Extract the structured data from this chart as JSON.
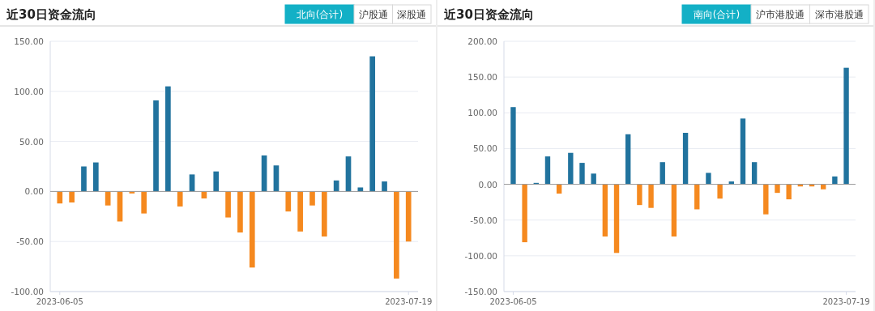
{
  "chart_data": [
    {
      "type": "bar",
      "title": "近30日资金流向",
      "annotations": [
        "北向(合计)",
        "沪股通",
        "深股通"
      ],
      "categories": [
        "2023-06-05",
        null,
        null,
        null,
        null,
        null,
        null,
        null,
        null,
        null,
        null,
        null,
        null,
        null,
        null,
        null,
        null,
        null,
        null,
        null,
        null,
        null,
        null,
        null,
        null,
        null,
        null,
        null,
        null,
        "2023-07-19"
      ],
      "values": [
        -12,
        -11,
        25,
        29,
        -14,
        -30,
        -2,
        -22,
        91,
        105,
        -15,
        17,
        -7,
        20,
        -26,
        -41,
        -76,
        36,
        26,
        -20,
        -40,
        -14,
        -45,
        11,
        35,
        4,
        135,
        10,
        -87,
        -50
      ],
      "colors": [
        "#f5891f",
        "#f5891f",
        "#21739e",
        "#21739e",
        "#f5891f",
        "#f5891f",
        "#f5891f",
        "#f5891f",
        "#21739e",
        "#21739e",
        "#f5891f",
        "#21739e",
        "#f5891f",
        "#21739e",
        "#f5891f",
        "#f5891f",
        "#f5891f",
        "#21739e",
        "#21739e",
        "#f5891f",
        "#f5891f",
        "#f5891f",
        "#f5891f",
        "#21739e",
        "#21739e",
        "#21739e",
        "#21739e",
        "#21739e",
        "#f5891f",
        "#f5891f"
      ],
      "ylim": [
        -100,
        150
      ],
      "yticks": [
        {
          "value": -100,
          "label": "-100.00"
        },
        {
          "value": -50,
          "label": "-50.00"
        },
        {
          "value": 0,
          "label": "0.00"
        },
        {
          "value": 50,
          "label": "50.00"
        },
        {
          "value": 100,
          "label": "100.00"
        },
        {
          "value": 150,
          "label": "150.00"
        }
      ],
      "grid": "y"
    },
    {
      "type": "bar",
      "title": "近30日资金流向",
      "annotations": [
        "南向(合计)",
        "沪市港股通",
        "深市港股通"
      ],
      "categories": [
        "2023-06-05",
        null,
        null,
        null,
        null,
        null,
        null,
        null,
        null,
        null,
        null,
        null,
        null,
        null,
        null,
        null,
        null,
        null,
        null,
        null,
        null,
        null,
        null,
        null,
        null,
        null,
        null,
        null,
        null,
        "2023-07-19"
      ],
      "values": [
        108,
        -81,
        2,
        39,
        -13,
        44,
        30,
        15,
        -73,
        -96,
        70,
        -29,
        -33,
        31,
        -73,
        72,
        -35,
        16,
        -20,
        4,
        92,
        31,
        -42,
        -12,
        -21,
        -3,
        -3,
        -7,
        11,
        163
      ],
      "colors": [
        "#21739e",
        "#f5891f",
        "#21739e",
        "#21739e",
        "#f5891f",
        "#21739e",
        "#21739e",
        "#21739e",
        "#f5891f",
        "#f5891f",
        "#21739e",
        "#f5891f",
        "#f5891f",
        "#21739e",
        "#f5891f",
        "#21739e",
        "#f5891f",
        "#21739e",
        "#f5891f",
        "#21739e",
        "#21739e",
        "#21739e",
        "#f5891f",
        "#f5891f",
        "#f5891f",
        "#f5891f",
        "#f5891f",
        "#f5891f",
        "#21739e",
        "#21739e"
      ],
      "ylim": [
        -150,
        200
      ],
      "yticks": [
        {
          "value": -150,
          "label": "-150.00"
        },
        {
          "value": -100,
          "label": "-100.00"
        },
        {
          "value": -50,
          "label": "-50.00"
        },
        {
          "value": 0,
          "label": "0.00"
        },
        {
          "value": 50,
          "label": "50.00"
        },
        {
          "value": 100,
          "label": "100.00"
        },
        {
          "value": 150,
          "label": "150.00"
        },
        {
          "value": 200,
          "label": "200.00"
        }
      ],
      "grid": "y"
    }
  ]
}
